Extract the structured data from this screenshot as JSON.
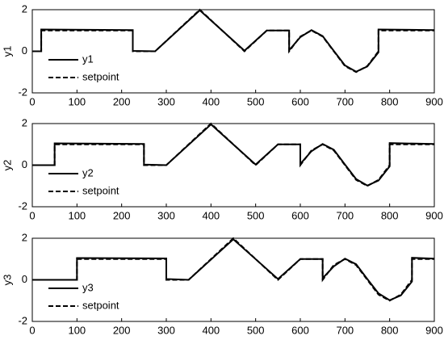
{
  "chart_data": [
    {
      "type": "line",
      "ylabel": "y1",
      "x": [
        0,
        20,
        20,
        225,
        225,
        275,
        375,
        475,
        525,
        575,
        575,
        600,
        625,
        650,
        675,
        700,
        725,
        750,
        775,
        775,
        900
      ],
      "series": [
        {
          "name": "y1",
          "color": "#000000",
          "dash": false,
          "values": [
            0,
            0,
            1.05,
            1.02,
            0.02,
            0,
            1.97,
            0.03,
            1,
            1,
            0.05,
            0.68,
            1.02,
            0.73,
            0.02,
            -0.68,
            -0.98,
            -0.73,
            -0.05,
            1.05,
            1.02
          ]
        },
        {
          "name": "setpoint",
          "color": "#000000",
          "dash": true,
          "values": [
            0,
            0,
            1,
            1,
            0,
            0,
            2,
            0,
            1,
            1,
            0,
            0.71,
            1,
            0.71,
            0,
            -0.71,
            -1,
            -0.71,
            0,
            1,
            1
          ]
        }
      ],
      "xlim": [
        0,
        900
      ],
      "xticks": [
        0,
        100,
        200,
        300,
        400,
        500,
        600,
        700,
        800,
        900
      ],
      "ylim": [
        -2,
        2
      ],
      "yticks": [
        -2,
        0,
        2
      ]
    },
    {
      "type": "line",
      "ylabel": "y2",
      "x": [
        0,
        50,
        50,
        250,
        250,
        300,
        400,
        500,
        550,
        600,
        600,
        625,
        650,
        675,
        700,
        725,
        750,
        775,
        800,
        800,
        900
      ],
      "series": [
        {
          "name": "y2",
          "color": "#000000",
          "dash": false,
          "values": [
            0,
            0,
            1.05,
            1.02,
            0.03,
            0,
            1.96,
            0.03,
            1,
            1,
            0.06,
            0.67,
            1.02,
            0.74,
            0.03,
            -0.67,
            -0.98,
            -0.74,
            -0.06,
            1.06,
            1.02
          ]
        },
        {
          "name": "setpoint",
          "color": "#000000",
          "dash": true,
          "values": [
            0,
            0,
            1,
            1,
            0,
            0,
            2,
            0,
            1,
            1,
            0,
            0.71,
            1,
            0.71,
            0,
            -0.71,
            -1,
            -0.71,
            0,
            1,
            1
          ]
        }
      ],
      "xlim": [
        0,
        900
      ],
      "xticks": [
        0,
        100,
        200,
        300,
        400,
        500,
        600,
        700,
        800,
        900
      ],
      "ylim": [
        -2,
        2
      ],
      "yticks": [
        -2,
        0,
        2
      ]
    },
    {
      "type": "line",
      "ylabel": "y3",
      "x": [
        0,
        100,
        100,
        300,
        300,
        350,
        450,
        550,
        600,
        650,
        650,
        675,
        700,
        725,
        750,
        775,
        800,
        825,
        850,
        850,
        900
      ],
      "series": [
        {
          "name": "y3",
          "color": "#000000",
          "dash": false,
          "values": [
            0,
            0,
            1.05,
            1.03,
            0.04,
            0,
            1.95,
            0.04,
            1,
            1,
            0.08,
            0.65,
            1.02,
            0.75,
            0.04,
            -0.65,
            -0.98,
            -0.75,
            -0.08,
            1.06,
            1.02
          ]
        },
        {
          "name": "setpoint",
          "color": "#000000",
          "dash": true,
          "values": [
            0,
            0,
            1,
            1,
            0,
            0,
            2,
            0,
            1,
            1,
            0,
            0.71,
            1,
            0.71,
            0,
            -0.71,
            -1,
            -0.71,
            0,
            1,
            1
          ]
        }
      ],
      "xlim": [
        0,
        900
      ],
      "xticks": [
        0,
        100,
        200,
        300,
        400,
        500,
        600,
        700,
        800,
        900
      ],
      "ylim": [
        -2,
        2
      ],
      "yticks": [
        -2,
        0,
        2
      ]
    }
  ]
}
